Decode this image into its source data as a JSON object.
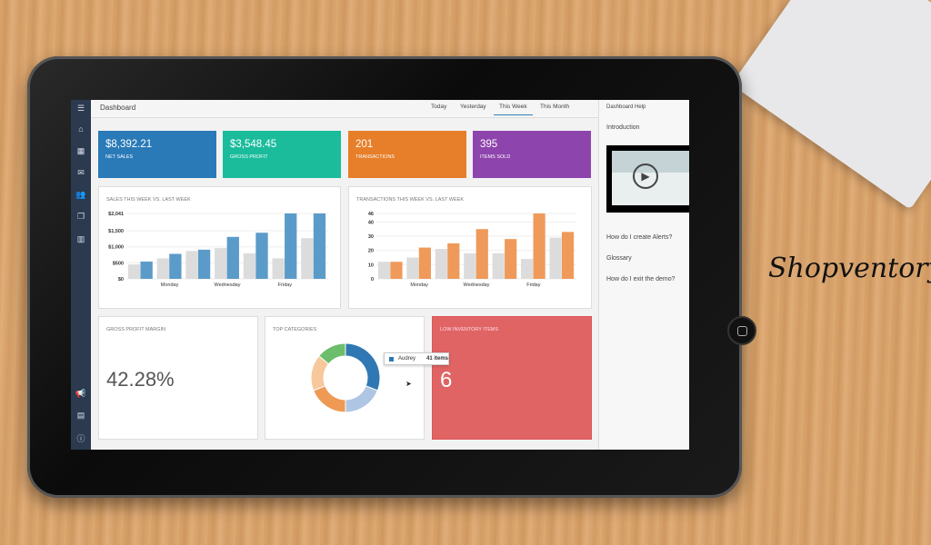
{
  "brand": "Shopventory",
  "header": {
    "title": "Dashboard",
    "tabs": [
      {
        "label": "Today"
      },
      {
        "label": "Yesterday"
      },
      {
        "label": "This Week",
        "active": true
      },
      {
        "label": "This Month"
      }
    ]
  },
  "sidebar": {
    "icons": [
      "menu-icon",
      "home-icon",
      "grid-icon",
      "mail-icon",
      "users-icon",
      "documents-icon",
      "chart-icon",
      "megaphone-icon",
      "card-icon",
      "info-icon"
    ]
  },
  "tiles": [
    {
      "value": "$8,392.21",
      "label": "NET SALES",
      "color": "#2a7ab8"
    },
    {
      "value": "$3,548.45",
      "label": "GROSS PROFIT",
      "color": "#1abc9c"
    },
    {
      "value": "201",
      "label": "TRANSACTIONS",
      "color": "#e67e2a"
    },
    {
      "value": "395",
      "label": "ITEMS SOLD",
      "color": "#8e44ad"
    }
  ],
  "chart_data": [
    {
      "type": "bar",
      "title": "SALES THIS WEEK VS. LAST WEEK",
      "tick_labels": [
        "$0",
        "$500",
        "$1,000",
        "$1,500",
        "$2,041"
      ],
      "ticks": [
        0,
        500,
        1000,
        1500,
        2041
      ],
      "ylim": [
        0,
        2041
      ],
      "categories": [
        "",
        "Monday",
        "",
        "Wednesday",
        "",
        "Friday",
        ""
      ],
      "series": [
        {
          "values": [
            450,
            640,
            870,
            960,
            800,
            640,
            1270
          ],
          "color": "#dcdcdc"
        },
        {
          "values": [
            540,
            780,
            910,
            1310,
            1440,
            2041,
            2041
          ],
          "color": "#5b9bc9"
        }
      ]
    },
    {
      "type": "bar",
      "title": "TRANSACTIONS THIS WEEK VS. LAST WEEK",
      "tick_labels": [
        "0",
        "10",
        "20",
        "30",
        "40",
        "46"
      ],
      "ticks": [
        0,
        10,
        20,
        30,
        40,
        46
      ],
      "ylim": [
        0,
        46
      ],
      "categories": [
        "",
        "Monday",
        "",
        "Wednesday",
        "",
        "Friday",
        ""
      ],
      "series": [
        {
          "values": [
            12,
            15,
            21,
            18,
            18,
            14,
            29
          ],
          "color": "#dcdcdc"
        },
        {
          "values": [
            12,
            22,
            25,
            35,
            28,
            46,
            33
          ],
          "color": "#ef9a5a"
        }
      ]
    },
    {
      "type": "pie",
      "title": "TOP CATEGORIES",
      "slices": [
        {
          "value": 0.31,
          "color": "#2f78b3"
        },
        {
          "value": 0.19,
          "color": "#aec6e3"
        },
        {
          "value": 0.19,
          "color": "#ee9a55"
        },
        {
          "value": 0.17,
          "color": "#f6c89c"
        },
        {
          "value": 0.14,
          "color": "#6cbd6c"
        }
      ],
      "tooltip": {
        "name": "Audrey",
        "value": "41 items"
      }
    }
  ],
  "gross_margin": {
    "title": "GROSS PROFIT MARGIN",
    "value": "42.28%"
  },
  "low_inventory": {
    "title": "LOW INVENTORY ITEMS",
    "value": "6",
    "color": "#e06464"
  },
  "help": {
    "title": "Dashboard Help",
    "intro": "Introduction",
    "items": [
      "How do I create Alerts?",
      "Glossary",
      "How do I exit the demo?"
    ]
  }
}
